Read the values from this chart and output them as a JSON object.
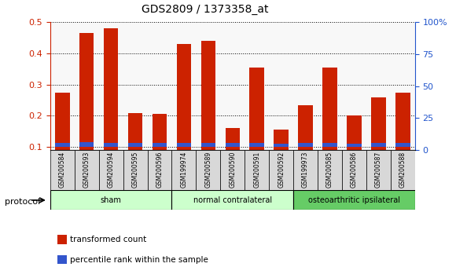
{
  "title": "GDS2809 / 1373358_at",
  "categories": [
    "GSM200584",
    "GSM200593",
    "GSM200594",
    "GSM200595",
    "GSM200596",
    "GSM199974",
    "GSM200589",
    "GSM200590",
    "GSM200591",
    "GSM200592",
    "GSM199973",
    "GSM200585",
    "GSM200586",
    "GSM200587",
    "GSM200588"
  ],
  "red_values": [
    0.275,
    0.465,
    0.48,
    0.208,
    0.207,
    0.43,
    0.44,
    0.16,
    0.355,
    0.155,
    0.233,
    0.355,
    0.2,
    0.258,
    0.275
  ],
  "blue_values": [
    0.013,
    0.015,
    0.014,
    0.012,
    0.012,
    0.014,
    0.014,
    0.012,
    0.013,
    0.011,
    0.012,
    0.013,
    0.011,
    0.012,
    0.013
  ],
  "groups": [
    {
      "label": "sham",
      "start": 0,
      "end": 5,
      "color": "#ccffcc"
    },
    {
      "label": "normal contralateral",
      "start": 5,
      "end": 10,
      "color": "#ccffcc"
    },
    {
      "label": "osteoarthritic ipsilateral",
      "start": 10,
      "end": 15,
      "color": "#66cc66"
    }
  ],
  "protocol_label": "protocol",
  "ylim_left": [
    0.09,
    0.5
  ],
  "ylim_right": [
    0,
    100
  ],
  "yticks_left": [
    0.1,
    0.2,
    0.3,
    0.4,
    0.5
  ],
  "yticks_right": [
    0,
    25,
    50,
    75,
    100
  ],
  "ytick_right_labels": [
    "0",
    "25",
    "50",
    "75",
    "100%"
  ],
  "red_color": "#cc2200",
  "blue_color": "#3355cc",
  "bar_width": 0.6,
  "legend_items": [
    {
      "label": "transformed count",
      "color": "#cc2200"
    },
    {
      "label": "percentile rank within the sample",
      "color": "#3355cc"
    }
  ],
  "group_colors": [
    "#ccffcc",
    "#ccffcc",
    "#66cc66"
  ],
  "group_labels": [
    "sham",
    "normal contralateral",
    "osteoarthritic ipsilateral"
  ],
  "group_starts": [
    0,
    5,
    10
  ],
  "group_ends": [
    5,
    10,
    15
  ],
  "title_fontsize": 10,
  "axis_label_color_left": "#cc2200",
  "axis_label_color_right": "#2255cc",
  "bg_color": "#f0f0f0"
}
